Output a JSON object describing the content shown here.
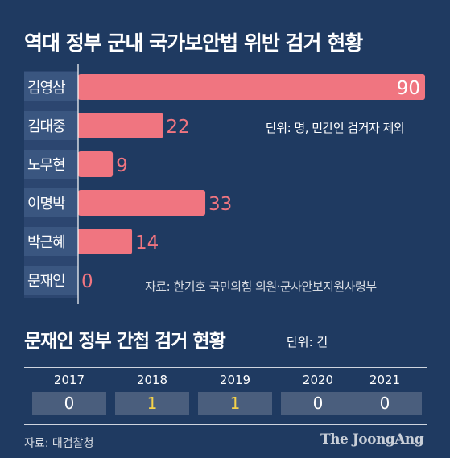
{
  "title": "역대 정부 군내 국가보안법 위반 검거 현황",
  "chart_data": {
    "type": "bar",
    "orientation": "horizontal",
    "categories": [
      "김영삼",
      "김대중",
      "노무현",
      "이명박",
      "박근혜",
      "문재인"
    ],
    "values": [
      90,
      22,
      9,
      33,
      14,
      0
    ],
    "xlim": [
      0,
      90
    ],
    "bar_color": "#f07580",
    "unit_note": "단위: 명, 민간인 검거자 제외",
    "source": "자료: 한기호 국민의힘 의원·군사안보지원사령부"
  },
  "section2": {
    "title": "문재인 정부 간첩 검거 현황",
    "unit": "단위: 건",
    "years": [
      {
        "year": "2017",
        "value": "0",
        "color": "#ffffff"
      },
      {
        "year": "2018",
        "value": "1",
        "color": "#f5d24a"
      },
      {
        "year": "2019",
        "value": "1",
        "color": "#f5d24a"
      },
      {
        "year": "2020",
        "value": "0",
        "color": "#ffffff"
      },
      {
        "year": "2021",
        "value": "0",
        "color": "#ffffff"
      }
    ],
    "source": "자료: 대검찰청"
  },
  "logo": "The JoongAng"
}
